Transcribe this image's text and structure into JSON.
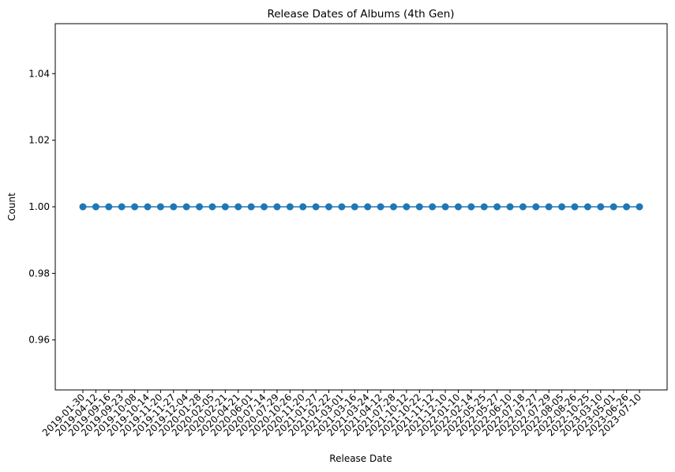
{
  "chart_data": {
    "type": "line",
    "title": "Release Dates of Albums (4th Gen)",
    "xlabel": "Release Date",
    "ylabel": "Count",
    "ylim": [
      0.945,
      1.055
    ],
    "yticks": [
      "0.96",
      "0.98",
      "1.00",
      "1.02",
      "1.04"
    ],
    "grid": false,
    "marker": "circle",
    "series_color": "#1f77b4",
    "categories": [
      "2019-01-30",
      "2019-04-12",
      "2019-09-16",
      "2019-09-23",
      "2019-10-08",
      "2019-10-14",
      "2019-11-20",
      "2019-11-27",
      "2019-12-04",
      "2020-01-28",
      "2020-02-05",
      "2020-02-21",
      "2020-04-21",
      "2020-06-01",
      "2020-07-14",
      "2020-07-29",
      "2020-10-26",
      "2020-11-20",
      "2021-01-27",
      "2021-02-22",
      "2021-03-01",
      "2021-03-16",
      "2021-03-24",
      "2021-04-12",
      "2021-07-28",
      "2021-10-12",
      "2021-10-22",
      "2021-11-12",
      "2021-12-10",
      "2022-01-10",
      "2022-02-14",
      "2022-05-25",
      "2022-05-27",
      "2022-06-10",
      "2022-07-18",
      "2022-07-27",
      "2022-07-29",
      "2022-08-05",
      "2022-08-26",
      "2022-10-25",
      "2023-03-10",
      "2023-05-01",
      "2023-06-26",
      "2023-07-10"
    ],
    "values": [
      1,
      1,
      1,
      1,
      1,
      1,
      1,
      1,
      1,
      1,
      1,
      1,
      1,
      1,
      1,
      1,
      1,
      1,
      1,
      1,
      1,
      1,
      1,
      1,
      1,
      1,
      1,
      1,
      1,
      1,
      1,
      1,
      1,
      1,
      1,
      1,
      1,
      1,
      1,
      1,
      1,
      1,
      1,
      1
    ]
  }
}
